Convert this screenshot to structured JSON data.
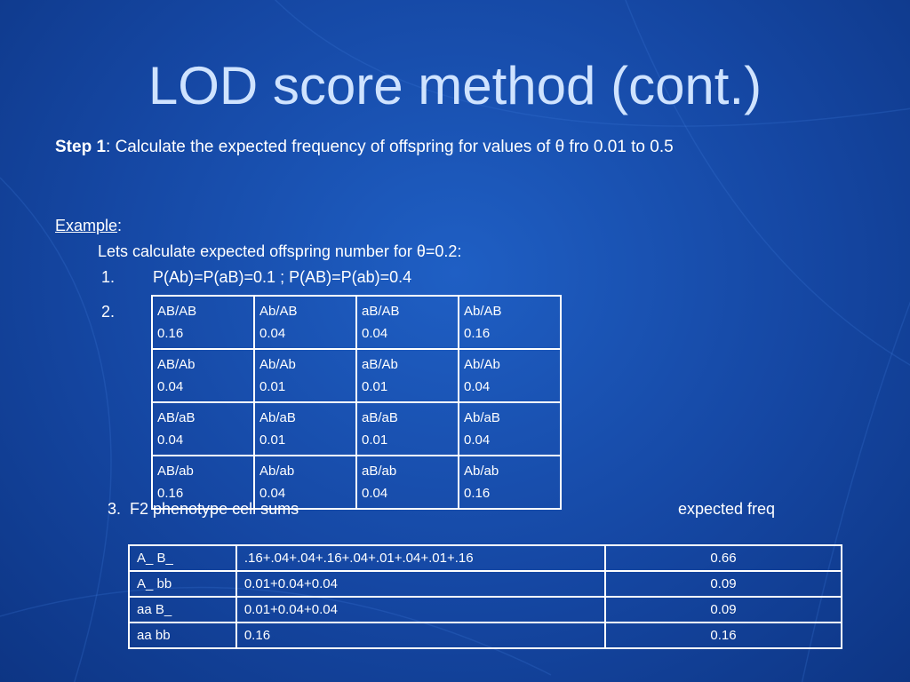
{
  "title": "LOD score method (cont.)",
  "step": {
    "label": "Step 1",
    "text": ": Calculate the expected frequency of offspring for values of θ fro 0.01 to 0.5"
  },
  "example": {
    "label": "Example",
    "suffix": ":"
  },
  "intro": "Lets calculate expected offspring number for θ=0.2:",
  "items": [
    {
      "number": "1.",
      "text": "P(Ab)=P(aB)=0.1 ; P(AB)=P(ab)=0.4"
    },
    {
      "number": "2."
    },
    {
      "number": "3.",
      "text": "F2 phenotype cell sums",
      "right": "expected freq"
    }
  ],
  "grid_table": {
    "rows": [
      [
        [
          "AB/AB",
          "0.16"
        ],
        [
          "Ab/AB",
          "0.04"
        ],
        [
          "aB/AB",
          "0.04"
        ],
        [
          "Ab/AB",
          "0.16"
        ]
      ],
      [
        [
          "AB/Ab",
          "0.04"
        ],
        [
          "Ab/Ab",
          "0.01"
        ],
        [
          "aB/Ab",
          "0.01"
        ],
        [
          "Ab/Ab",
          "0.04"
        ]
      ],
      [
        [
          "AB/aB",
          "0.04"
        ],
        [
          "Ab/aB",
          "0.01"
        ],
        [
          "aB/aB",
          "0.01"
        ],
        [
          "Ab/aB",
          "0.04"
        ]
      ],
      [
        [
          "AB/ab",
          "0.16"
        ],
        [
          "Ab/ab",
          "0.04"
        ],
        [
          "aB/ab",
          "0.04"
        ],
        [
          "Ab/ab",
          "0.16"
        ]
      ]
    ]
  },
  "sums_table": {
    "rows": [
      [
        "A_ B_",
        ".16+.04+.04+.16+.04+.01+.04+.01+.16",
        "0.66"
      ],
      [
        "A_ bb",
        "0.01+0.04+0.04",
        "0.09"
      ],
      [
        "aa B_",
        "0.01+0.04+0.04",
        "0.09"
      ],
      [
        "aa bb",
        "0.16",
        "0.16"
      ]
    ]
  }
}
